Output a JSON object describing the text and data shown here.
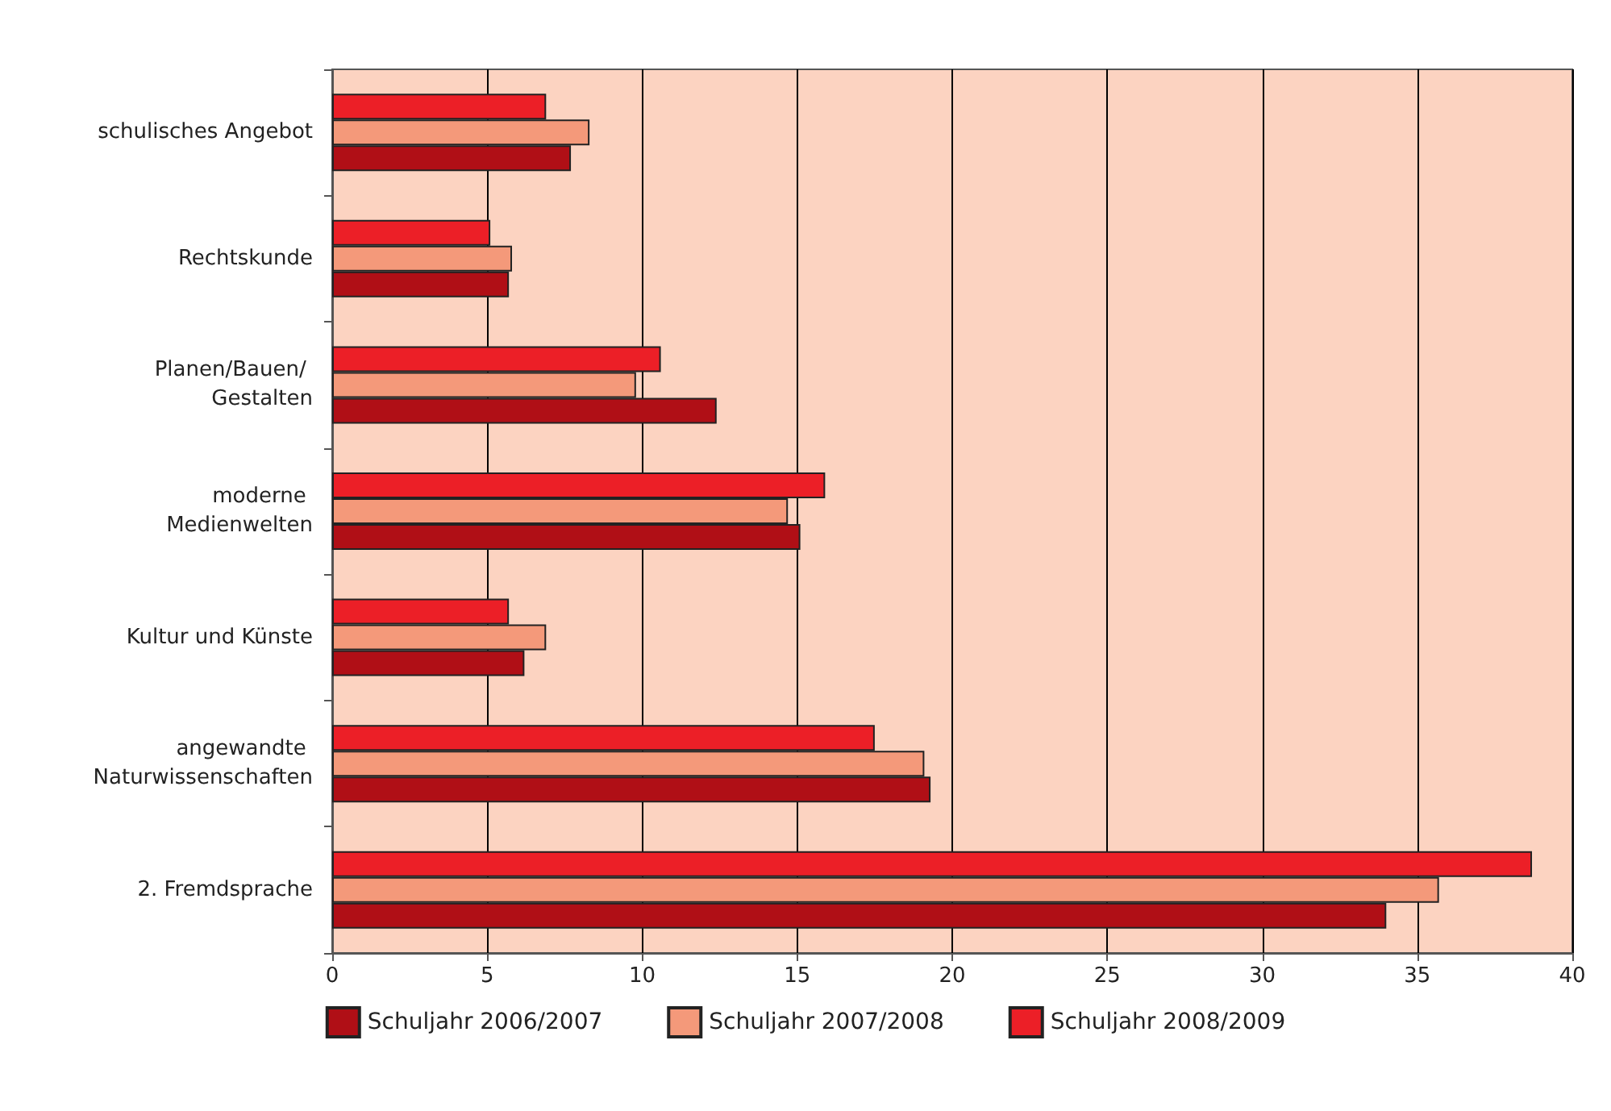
{
  "chart_data": {
    "type": "bar",
    "orientation": "horizontal",
    "categories": [
      "schulisches Angebot",
      "Rechtskunde",
      "Planen/Bauen/ Gestalten",
      "moderne Medienwelten",
      "Kultur und Künste",
      "angewandte Naturwissenschaften",
      "2. Fremdsprache"
    ],
    "series": [
      {
        "name": "Schuljahr 2006/2007",
        "color": "#b00f16",
        "values": [
          7.7,
          5.7,
          12.4,
          15.1,
          6.2,
          19.3,
          34.0
        ]
      },
      {
        "name": "Schuljahr 2007/2008",
        "color": "#f4997a",
        "values": [
          8.3,
          5.8,
          9.8,
          14.7,
          6.9,
          19.1,
          35.7
        ]
      },
      {
        "name": "Schuljahr 2008/2009",
        "color": "#ec1f27",
        "values": [
          6.9,
          5.1,
          10.6,
          15.9,
          5.7,
          17.5,
          38.7
        ]
      }
    ],
    "xlim": [
      0,
      40
    ],
    "xticks": [
      0,
      5,
      10,
      15,
      20,
      25,
      30,
      35,
      40
    ],
    "grid": "x",
    "legend": "bottom"
  }
}
